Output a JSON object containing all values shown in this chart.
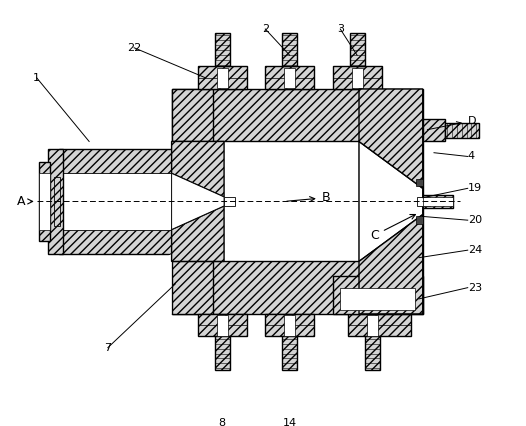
{
  "bg": "#ffffff",
  "lc": "#000000",
  "H": "#d4d4d4",
  "lw": 1.0,
  "hatch": "////",
  "fs": 8,
  "xlim": [
    -1.5,
    11.5
  ],
  "ylim": [
    -1.0,
    9.5
  ]
}
